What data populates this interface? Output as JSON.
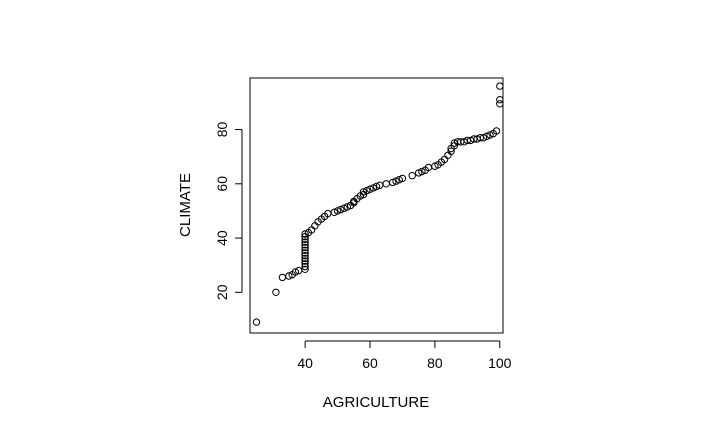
{
  "chart_data": {
    "type": "scatter",
    "title": "",
    "xlabel": "AGRICULTURE",
    "ylabel": "CLIMATE",
    "xlim": [
      23,
      101
    ],
    "ylim": [
      5,
      99
    ],
    "xticks": [
      40,
      60,
      80,
      100
    ],
    "yticks": [
      20,
      40,
      60,
      80
    ],
    "grid": false,
    "legend": "none",
    "marker": "open-circle",
    "color": "#000000",
    "series": [
      {
        "points": [
          [
            25,
            9
          ],
          [
            31,
            20
          ],
          [
            33,
            25.5
          ],
          [
            35,
            26
          ],
          [
            36,
            26.5
          ],
          [
            37,
            27.5
          ],
          [
            38,
            28
          ],
          [
            40,
            28.5
          ],
          [
            40,
            29.5
          ],
          [
            40,
            30.5
          ],
          [
            40,
            31.5
          ],
          [
            40,
            32.5
          ],
          [
            40,
            33.5
          ],
          [
            40,
            34.5
          ],
          [
            40,
            35.5
          ],
          [
            40,
            36.5
          ],
          [
            40,
            37.5
          ],
          [
            40,
            38.5
          ],
          [
            40,
            39.5
          ],
          [
            40,
            40.5
          ],
          [
            40,
            41.5
          ],
          [
            41,
            42
          ],
          [
            42,
            43
          ],
          [
            43,
            44.5
          ],
          [
            44,
            46
          ],
          [
            45,
            47
          ],
          [
            46,
            48
          ],
          [
            47,
            49
          ],
          [
            49,
            49.5
          ],
          [
            50,
            50
          ],
          [
            51,
            50.5
          ],
          [
            52,
            51
          ],
          [
            53,
            51.5
          ],
          [
            54,
            52
          ],
          [
            55,
            53
          ],
          [
            55,
            53.5
          ],
          [
            56,
            54.5
          ],
          [
            57,
            55.5
          ],
          [
            58,
            56
          ],
          [
            58,
            57
          ],
          [
            59,
            57.5
          ],
          [
            60,
            58
          ],
          [
            61,
            58.5
          ],
          [
            62,
            59
          ],
          [
            63,
            59.5
          ],
          [
            65,
            60
          ],
          [
            67,
            60.5
          ],
          [
            68,
            61
          ],
          [
            69,
            61.5
          ],
          [
            70,
            62
          ],
          [
            73,
            63
          ],
          [
            75,
            64
          ],
          [
            76,
            64.5
          ],
          [
            77,
            65
          ],
          [
            78,
            66
          ],
          [
            80,
            66.5
          ],
          [
            81,
            67
          ],
          [
            82,
            68
          ],
          [
            83,
            69
          ],
          [
            84,
            70.5
          ],
          [
            85,
            72
          ],
          [
            85,
            73
          ],
          [
            86,
            74
          ],
          [
            86,
            75
          ],
          [
            87,
            75.5
          ],
          [
            88,
            75.5
          ],
          [
            89,
            75.5
          ],
          [
            90,
            76
          ],
          [
            91,
            76
          ],
          [
            92,
            76.5
          ],
          [
            93,
            76.5
          ],
          [
            94,
            77
          ],
          [
            95,
            77
          ],
          [
            96,
            77.5
          ],
          [
            97,
            78
          ],
          [
            98,
            78.5
          ],
          [
            99,
            79.5
          ],
          [
            100,
            89.5
          ],
          [
            100,
            91
          ],
          [
            100,
            96
          ]
        ]
      }
    ]
  }
}
